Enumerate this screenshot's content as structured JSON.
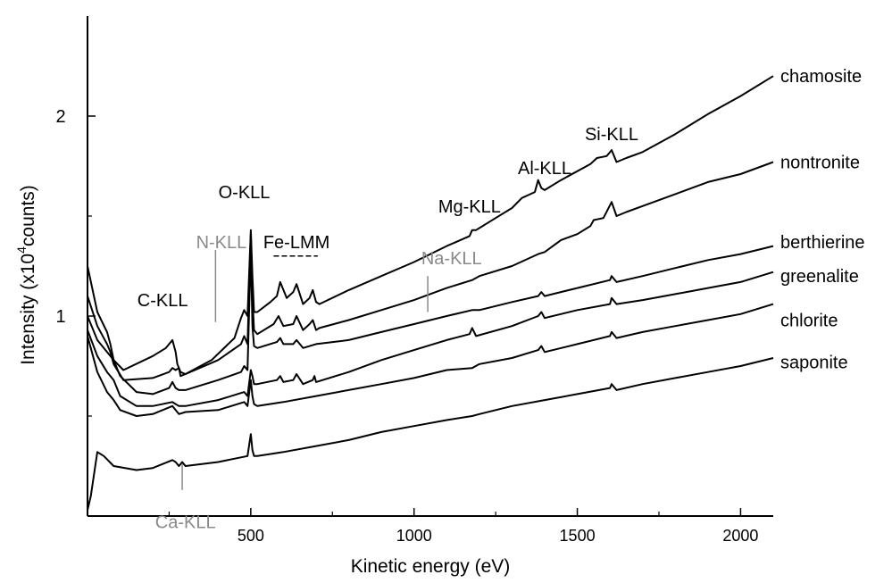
{
  "chart_data": {
    "type": "line",
    "xlabel": "Kinetic energy (eV)",
    "ylabel_parts": [
      "Intensity (x10",
      "4",
      "counts)"
    ],
    "xlim": [
      0,
      2100
    ],
    "ylim": [
      0,
      2.5
    ],
    "xticks": [
      500,
      1000,
      1500,
      2000
    ],
    "xtick_labels": [
      "500",
      "1000",
      "1500",
      "2000"
    ],
    "yticks": [
      1,
      2
    ],
    "ytick_labels": [
      "1",
      "2"
    ],
    "grid": false,
    "colors": {
      "line": "#000000",
      "minor_annotation": "#8a8a8a"
    },
    "series": [
      {
        "name": "chamosite",
        "x": [
          0,
          30,
          60,
          70,
          80,
          110,
          200,
          240,
          260,
          270,
          275,
          285,
          300,
          380,
          450,
          470,
          480,
          490,
          500,
          505,
          510,
          520,
          560,
          580,
          590,
          610,
          630,
          640,
          660,
          680,
          690,
          700,
          710,
          800,
          900,
          1000,
          1100,
          1170,
          1178,
          1190,
          1250,
          1300,
          1330,
          1370,
          1380,
          1390,
          1400,
          1450,
          1540,
          1560,
          1590,
          1605,
          1620,
          1650,
          1700,
          1800,
          1900,
          2000,
          2100
        ],
        "y": [
          1.25,
          1.02,
          0.92,
          0.86,
          0.78,
          0.73,
          0.8,
          0.84,
          0.88,
          0.82,
          0.76,
          0.72,
          0.71,
          0.78,
          0.89,
          0.99,
          1.03,
          1.0,
          1.43,
          1.2,
          1.02,
          1.02,
          1.07,
          1.1,
          1.17,
          1.09,
          1.12,
          1.16,
          1.06,
          1.09,
          1.13,
          1.07,
          1.06,
          1.13,
          1.2,
          1.27,
          1.35,
          1.4,
          1.43,
          1.43,
          1.49,
          1.54,
          1.59,
          1.62,
          1.68,
          1.64,
          1.63,
          1.68,
          1.76,
          1.79,
          1.8,
          1.83,
          1.77,
          1.79,
          1.82,
          1.91,
          2.01,
          2.1,
          2.2
        ]
      },
      {
        "name": "nontronite",
        "x": [
          0,
          30,
          60,
          70,
          80,
          110,
          200,
          250,
          260,
          270,
          280,
          285,
          300,
          400,
          470,
          480,
          490,
          500,
          505,
          510,
          520,
          570,
          585,
          600,
          630,
          640,
          660,
          680,
          690,
          700,
          710,
          800,
          900,
          1000,
          1100,
          1178,
          1200,
          1300,
          1380,
          1400,
          1450,
          1500,
          1540,
          1550,
          1580,
          1605,
          1620,
          1650,
          1700,
          1800,
          1900,
          2000,
          2100
        ],
        "y": [
          1.1,
          0.95,
          0.86,
          0.82,
          0.76,
          0.68,
          0.69,
          0.72,
          0.74,
          0.73,
          0.74,
          0.7,
          0.71,
          0.78,
          0.86,
          0.9,
          0.86,
          1.41,
          1.1,
          0.93,
          0.91,
          0.96,
          1.0,
          0.95,
          0.96,
          1.0,
          0.93,
          0.96,
          0.98,
          0.93,
          0.94,
          0.98,
          1.03,
          1.08,
          1.14,
          1.18,
          1.2,
          1.25,
          1.31,
          1.32,
          1.38,
          1.41,
          1.45,
          1.48,
          1.49,
          1.57,
          1.5,
          1.52,
          1.55,
          1.61,
          1.67,
          1.71,
          1.77
        ]
      },
      {
        "name": "berthierine",
        "x": [
          0,
          30,
          60,
          80,
          100,
          150,
          200,
          250,
          260,
          270,
          280,
          300,
          400,
          470,
          480,
          490,
          500,
          505,
          510,
          520,
          580,
          590,
          600,
          630,
          640,
          660,
          700,
          800,
          900,
          1000,
          1100,
          1178,
          1200,
          1300,
          1380,
          1390,
          1400,
          1500,
          1600,
          1605,
          1620,
          1700,
          1800,
          1900,
          2000,
          2100
        ],
        "y": [
          1.0,
          0.88,
          0.82,
          0.78,
          0.7,
          0.62,
          0.61,
          0.64,
          0.67,
          0.64,
          0.63,
          0.63,
          0.68,
          0.72,
          0.75,
          0.73,
          1.34,
          0.95,
          0.85,
          0.84,
          0.87,
          0.89,
          0.86,
          0.86,
          0.88,
          0.84,
          0.86,
          0.88,
          0.92,
          0.96,
          1.0,
          1.03,
          1.03,
          1.07,
          1.1,
          1.12,
          1.1,
          1.14,
          1.18,
          1.2,
          1.17,
          1.2,
          1.24,
          1.28,
          1.31,
          1.35
        ]
      },
      {
        "name": "greenalite",
        "x": [
          0,
          30,
          60,
          80,
          100,
          150,
          200,
          260,
          270,
          280,
          300,
          400,
          480,
          490,
          500,
          505,
          510,
          520,
          580,
          590,
          600,
          630,
          640,
          660,
          690,
          695,
          700,
          800,
          900,
          1000,
          1100,
          1170,
          1178,
          1190,
          1300,
          1380,
          1390,
          1400,
          1500,
          1600,
          1605,
          1620,
          1700,
          1800,
          1900,
          2000,
          2100
        ],
        "y": [
          0.93,
          0.8,
          0.72,
          0.68,
          0.6,
          0.55,
          0.55,
          0.57,
          0.56,
          0.55,
          0.55,
          0.58,
          0.62,
          0.6,
          0.73,
          0.7,
          0.66,
          0.66,
          0.68,
          0.7,
          0.67,
          0.68,
          0.71,
          0.66,
          0.68,
          0.7,
          0.67,
          0.72,
          0.78,
          0.83,
          0.88,
          0.91,
          0.94,
          0.9,
          0.95,
          1.0,
          1.02,
          0.99,
          1.03,
          1.06,
          1.09,
          1.06,
          1.08,
          1.11,
          1.14,
          1.17,
          1.22
        ]
      },
      {
        "name": "chlorite",
        "x": [
          0,
          30,
          60,
          80,
          100,
          150,
          200,
          260,
          270,
          280,
          300,
          400,
          480,
          490,
          500,
          505,
          510,
          520,
          600,
          700,
          800,
          900,
          1000,
          1100,
          1178,
          1200,
          1300,
          1380,
          1390,
          1400,
          1500,
          1600,
          1605,
          1620,
          1700,
          1800,
          1900,
          2000,
          2100
        ],
        "y": [
          0.9,
          0.72,
          0.62,
          0.58,
          0.53,
          0.5,
          0.51,
          0.55,
          0.53,
          0.51,
          0.52,
          0.53,
          0.57,
          0.55,
          0.68,
          0.6,
          0.56,
          0.55,
          0.57,
          0.6,
          0.63,
          0.66,
          0.69,
          0.73,
          0.74,
          0.76,
          0.79,
          0.83,
          0.85,
          0.82,
          0.86,
          0.9,
          0.92,
          0.89,
          0.92,
          0.95,
          0.98,
          1.01,
          1.06
        ]
      },
      {
        "name": "saponite",
        "x": [
          0,
          10,
          30,
          50,
          80,
          150,
          200,
          260,
          270,
          280,
          290,
          300,
          400,
          490,
          500,
          505,
          510,
          520,
          600,
          700,
          800,
          900,
          1000,
          1100,
          1178,
          1200,
          1300,
          1400,
          1500,
          1600,
          1605,
          1620,
          1700,
          1800,
          1900,
          2000,
          2100
        ],
        "y": [
          0.03,
          0.1,
          0.32,
          0.3,
          0.25,
          0.23,
          0.24,
          0.28,
          0.27,
          0.25,
          0.27,
          0.25,
          0.27,
          0.3,
          0.41,
          0.33,
          0.3,
          0.3,
          0.32,
          0.35,
          0.38,
          0.42,
          0.45,
          0.48,
          0.5,
          0.51,
          0.55,
          0.58,
          0.61,
          0.64,
          0.66,
          0.63,
          0.66,
          0.69,
          0.72,
          0.75,
          0.79
        ]
      }
    ],
    "series_labels": [
      {
        "text": "chamosite",
        "y": 2.2
      },
      {
        "text": "nontronite",
        "y": 1.77
      },
      {
        "text": "berthierine",
        "y": 1.37
      },
      {
        "text": "greenalite",
        "y": 1.2
      },
      {
        "text": "chlorite",
        "y": 0.98
      },
      {
        "text": "saponite",
        "y": 0.77
      }
    ],
    "annotations": [
      {
        "text": "C-KLL",
        "x": 230,
        "y": 1.08,
        "color": "black"
      },
      {
        "text": "N-KLL",
        "x": 410,
        "y": 1.37,
        "color": "gray",
        "tick": {
          "x": 392,
          "y1": 1.33,
          "y2": 0.97
        }
      },
      {
        "text": "O-KLL",
        "x": 480,
        "y": 1.62,
        "color": "black"
      },
      {
        "text": "Fe-LMM",
        "x": 640,
        "y": 1.37,
        "color": "black",
        "dash": {
          "x1": 570,
          "x2": 705,
          "y": 1.3
        }
      },
      {
        "text": "Na-KLL",
        "x": 1115,
        "y": 1.29,
        "color": "gray",
        "tick": {
          "x": 1042,
          "y1": 1.2,
          "y2": 1.02
        }
      },
      {
        "text": "Mg-KLL",
        "x": 1170,
        "y": 1.55,
        "color": "black"
      },
      {
        "text": "Al-KLL",
        "x": 1400,
        "y": 1.74,
        "color": "black"
      },
      {
        "text": "Si-KLL",
        "x": 1605,
        "y": 1.91,
        "color": "black"
      },
      {
        "text": "Ca-KLL",
        "x": 300,
        "y": -0.03,
        "color": "gray",
        "tick": {
          "x": 290,
          "y1": 0.26,
          "y2": 0.13
        }
      }
    ]
  }
}
